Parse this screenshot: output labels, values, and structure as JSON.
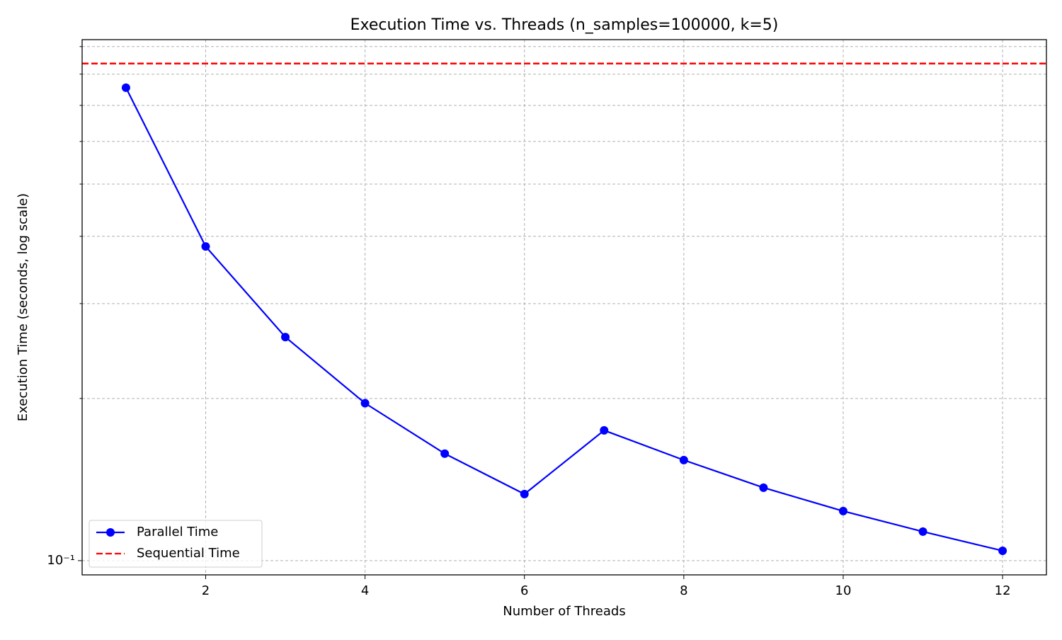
{
  "chart_data": {
    "type": "line",
    "title": "Execution Time vs. Threads (n_samples=100000, k=5)",
    "xlabel": "Number of Threads",
    "ylabel": "Execution Time (seconds, log scale)",
    "x": [
      1,
      2,
      3,
      4,
      5,
      6,
      7,
      8,
      9,
      10,
      11,
      12
    ],
    "series": [
      {
        "name": "Parallel Time",
        "color": "#0000ff",
        "marker": "circle",
        "values": [
          0.755,
          0.383,
          0.26,
          0.196,
          0.158,
          0.1329,
          0.1745,
          0.1537,
          0.1366,
          0.1236,
          0.1132,
          0.1043
        ]
      },
      {
        "name": "Sequential Time",
        "color": "#ff0000",
        "linestyle": "dashed",
        "hline": 0.837
      }
    ],
    "xlim": [
      0.45,
      12.55
    ],
    "xticks": [
      2,
      4,
      6,
      8,
      10,
      12
    ],
    "ylim": [
      0.0941,
      0.927
    ],
    "yscale": "log",
    "yticks": [
      {
        "value": 0.1,
        "label": "10⁻¹"
      }
    ],
    "yminor_ticks": [
      0.2,
      0.3,
      0.4,
      0.5,
      0.6,
      0.7,
      0.8,
      0.9
    ],
    "grid": true,
    "legend": "lower left"
  }
}
